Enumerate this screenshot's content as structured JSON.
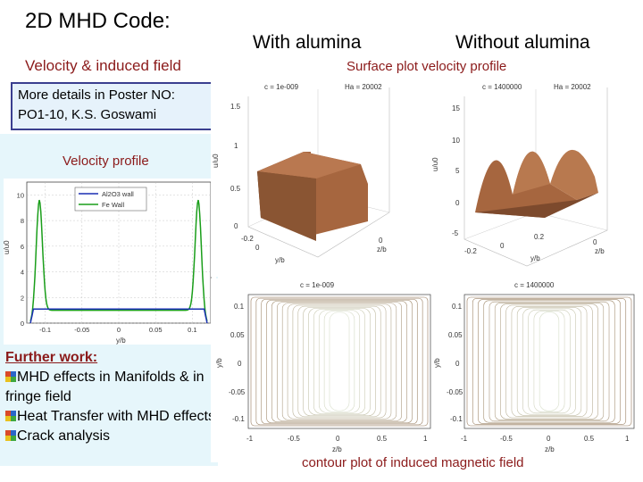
{
  "title": "2D MHD Code:",
  "subtitle": "Velocity & induced field",
  "header_with": "With alumina",
  "header_without": "Without alumina",
  "surface_caption": "Surface plot velocity profile",
  "poster_box": {
    "line1": "More details in Poster NO:",
    "line2": "PO1-10, K.S. Goswami"
  },
  "velocity_profile_label": "Velocity profile",
  "further_work": {
    "title": "Further work:",
    "items": [
      "MHD effects in Manifolds & in fringe field",
      "Heat Transfer with MHD effects",
      "Crack analysis"
    ]
  },
  "contour_caption": "contour plot of induced magnetic field",
  "plot_line": {
    "legend": [
      "Al2O3 wall",
      "Fe Wall"
    ],
    "ylabel": "u/u0",
    "y_ticks": [
      "0",
      "2",
      "4",
      "6",
      "8",
      "10"
    ],
    "x_ticks": [
      "-0.1",
      "-0.05",
      "0",
      "0.05",
      "0.1"
    ],
    "xlabel": "y/b",
    "series_colors": [
      "#1a2fb3",
      "#1a9e1a"
    ]
  },
  "surface_left": {
    "label_c": "c = 1e-009",
    "label_ha": "Ha = 20002",
    "zlabel": "u/u0",
    "z_ticks": [
      "1.5",
      "1",
      "0.5",
      "0"
    ],
    "x_ticks": [
      "-0.2",
      "0"
    ],
    "x_axis_label_a": "y/b",
    "x_axis_label_b": "z/b",
    "tick_c": "0"
  },
  "surface_right": {
    "label_c": "c = 1400000",
    "label_ha": "Ha = 20002",
    "zlabel": "u/u0",
    "z_ticks": [
      "15",
      "10",
      "5",
      "0",
      "-5"
    ],
    "x_ticks": [
      "-0.2",
      "0",
      "0.2"
    ],
    "x_axis_label_a": "y/b",
    "x_axis_label_b": "z/b",
    "tick_c": "0"
  },
  "contour_left": {
    "title": "c = 1e-009",
    "ylabel": "y/b",
    "y_ticks": [
      "0.1",
      "0.05",
      "0",
      "-0.05",
      "-0.1"
    ],
    "x_ticks": [
      "-1",
      "-0.5",
      "0",
      "0.5",
      "1"
    ],
    "xlabel": "z/b"
  },
  "contour_right": {
    "title": "c = 1400000",
    "ylabel": "y/b",
    "y_ticks": [
      "0.1",
      "0.05",
      "0",
      "-0.05",
      "-0.1"
    ],
    "x_ticks": [
      "-1",
      "-0.5",
      "0",
      "0.5",
      "1"
    ],
    "xlabel": "z/b"
  },
  "colors": {
    "accent": "#8b1a1a",
    "panel_bg": "#e6f6fb",
    "box_border": "#3a3f8f",
    "surface_fill": "#a6663f",
    "contour_stroke": "#a0683f"
  }
}
